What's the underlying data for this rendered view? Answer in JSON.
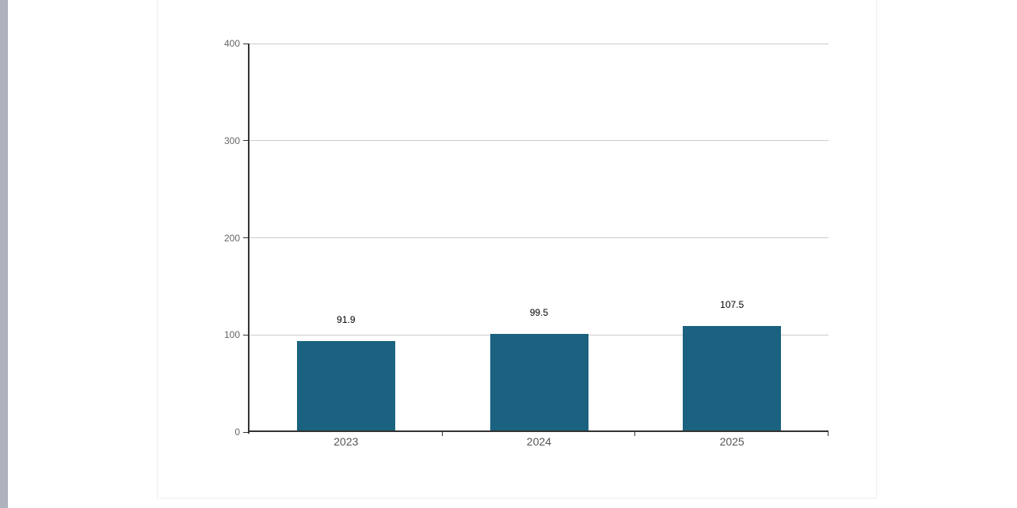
{
  "page": {
    "background": "#ffffff"
  },
  "left_strip": {
    "color": "#adb2bc"
  },
  "panel": {
    "background": "#ffffff",
    "border_color": "#efefef"
  },
  "chart_data": {
    "type": "bar",
    "title": "",
    "xlabel": "",
    "ylabel": "",
    "categories": [
      "2023",
      "2024",
      "2025"
    ],
    "values": [
      91.9,
      99.5,
      107.5
    ],
    "value_labels": [
      "91.9",
      "99.5",
      "107.5"
    ],
    "ylim": [
      0,
      400
    ],
    "yticks": [
      0,
      100,
      200,
      300,
      400
    ],
    "grid": true,
    "legend": "none",
    "colors": {
      "bar": "#1a6280",
      "axis": "#333333",
      "gridline": "#cccccc",
      "y_tick_label": "#666666",
      "category_label": "#555555",
      "value_label": "#000000"
    }
  }
}
